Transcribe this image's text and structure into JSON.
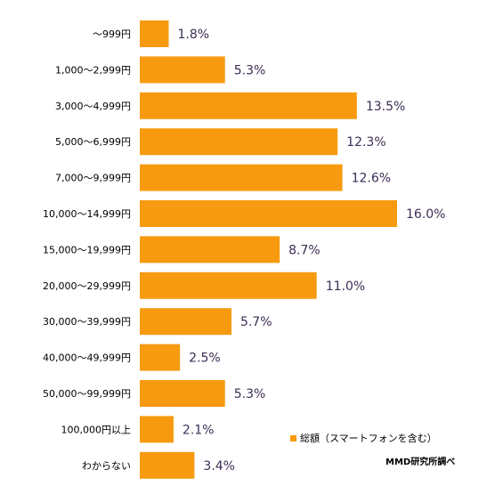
{
  "chart_data": {
    "type": "bar",
    "orientation": "horizontal",
    "categories": [
      "～999円",
      "1,000～2,999円",
      "3,000～4,999円",
      "5,000～6,999円",
      "7,000～9,999円",
      "10,000～14,999円",
      "15,000～19,999円",
      "20,000～29,999円",
      "30,000～39,999円",
      "40,000～49,999円",
      "50,000～99,999円",
      "100,000円以上",
      "わからない"
    ],
    "values": [
      1.8,
      5.3,
      13.5,
      12.3,
      12.6,
      16.0,
      8.7,
      11.0,
      5.7,
      2.5,
      5.3,
      2.1,
      3.4
    ],
    "value_labels": [
      "1.8%",
      "5.3%",
      "13.5%",
      "12.3%",
      "12.6%",
      "16.0%",
      "8.7%",
      "11.0%",
      "5.7%",
      "2.5%",
      "5.3%",
      "2.1%",
      "3.4%"
    ],
    "series_name": "総額（スマートフォンを含む）",
    "source": "MMD研究所調べ",
    "bar_color": "#f79a0f",
    "label_color": "#3d2d55",
    "xlim": [
      0,
      16.0
    ],
    "legend_position": "bottom-right",
    "grid": false
  }
}
